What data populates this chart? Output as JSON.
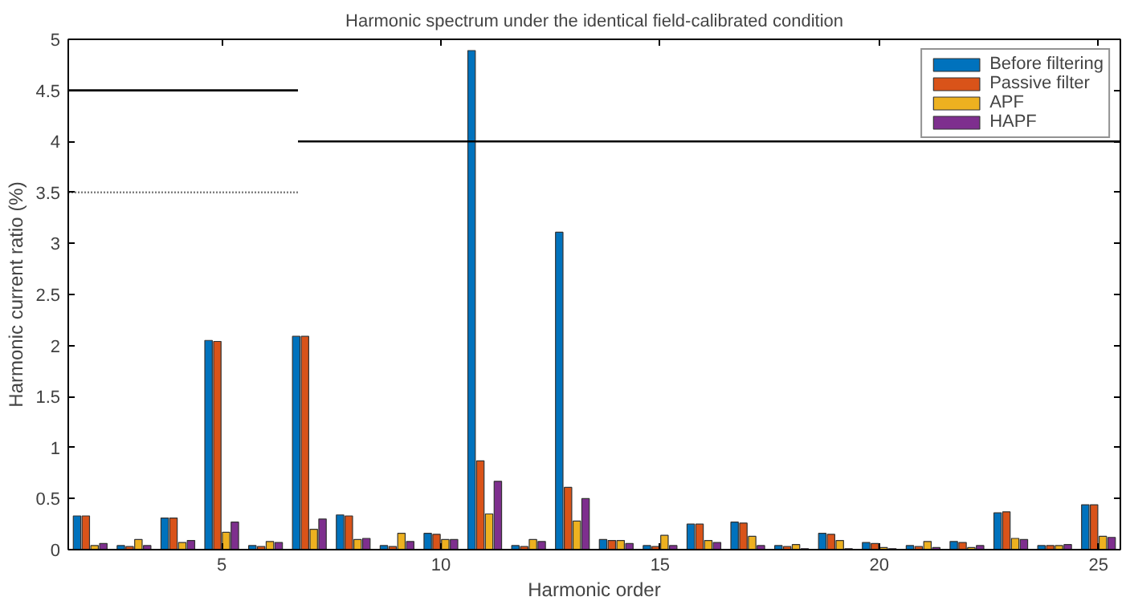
{
  "chart_data": {
    "type": "bar",
    "title": "Harmonic spectrum under the identical field-calibrated condition",
    "xlabel": "Harmonic order",
    "ylabel": "Harmonic current ratio (%)",
    "x": [
      2,
      3,
      4,
      5,
      6,
      7,
      8,
      9,
      10,
      11,
      12,
      13,
      14,
      15,
      16,
      17,
      18,
      19,
      20,
      21,
      22,
      23,
      24,
      25
    ],
    "xlim": [
      1.5,
      25.5
    ],
    "xticks": [
      5,
      10,
      15,
      20,
      25
    ],
    "ylim": [
      0,
      5
    ],
    "yticks": [
      0,
      0.5,
      1,
      1.5,
      2,
      2.5,
      3,
      3.5,
      4,
      4.5,
      5
    ],
    "grid": false,
    "legend": "top right",
    "series": [
      {
        "name": "Before filtering",
        "color": "#0072bd",
        "values": [
          0.33,
          0.04,
          0.31,
          2.05,
          0.04,
          2.09,
          0.34,
          0.04,
          0.16,
          4.89,
          0.04,
          3.11,
          0.1,
          0.04,
          0.25,
          0.27,
          0.04,
          0.16,
          0.07,
          0.04,
          0.08,
          0.36,
          0.04,
          0.44
        ]
      },
      {
        "name": "Passive filter",
        "color": "#d95319",
        "values": [
          0.33,
          0.03,
          0.31,
          2.04,
          0.03,
          2.09,
          0.33,
          0.03,
          0.15,
          0.87,
          0.03,
          0.61,
          0.09,
          0.03,
          0.25,
          0.26,
          0.03,
          0.15,
          0.06,
          0.03,
          0.07,
          0.37,
          0.04,
          0.44
        ]
      },
      {
        "name": "APF",
        "color": "#edb120",
        "values": [
          0.04,
          0.1,
          0.07,
          0.17,
          0.08,
          0.2,
          0.1,
          0.16,
          0.1,
          0.35,
          0.1,
          0.28,
          0.09,
          0.14,
          0.09,
          0.13,
          0.05,
          0.09,
          0.02,
          0.08,
          0.02,
          0.11,
          0.04,
          0.13
        ]
      },
      {
        "name": "HAPF",
        "color": "#7e2f8e",
        "values": [
          0.06,
          0.04,
          0.09,
          0.27,
          0.07,
          0.3,
          0.11,
          0.08,
          0.1,
          0.67,
          0.08,
          0.5,
          0.06,
          0.04,
          0.07,
          0.04,
          0.01,
          0.01,
          0.01,
          0.02,
          0.04,
          0.1,
          0.05,
          0.12
        ]
      },
      {
        "type": "line",
        "x": [
          1.5,
          6.74
        ],
        "values": [
          4.5,
          4.5
        ],
        "color": "#000000",
        "line_style": "solid"
      },
      {
        "type": "line",
        "x": [
          1.5,
          6.74
        ],
        "values": [
          3.5,
          3.5
        ],
        "color": "#808080",
        "line_style": "dotted"
      },
      {
        "type": "line",
        "x": [
          6.74,
          25.5
        ],
        "values": [
          4,
          4
        ],
        "color": "#000000",
        "line_style": "solid"
      }
    ]
  }
}
